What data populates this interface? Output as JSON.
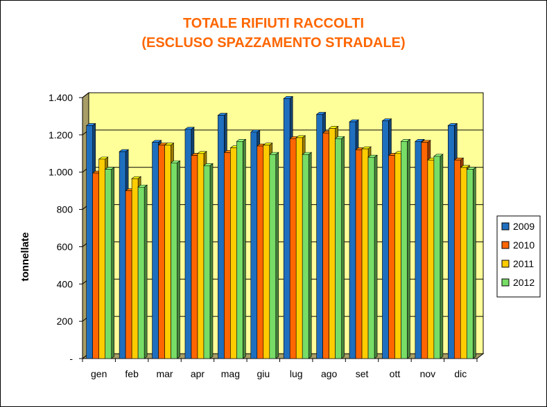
{
  "chart_data": {
    "type": "bar",
    "title": "TOTALE RIFIUTI RACCOLTI",
    "subtitle": "(ESCLUSO SPAZZAMENTO STRADALE)",
    "ylabel": "tonnellate",
    "xlabel": "",
    "ylim": [
      0,
      1400
    ],
    "yticks": [
      "-",
      "200",
      "400",
      "600",
      "800",
      "1.000",
      "1.200",
      "1.400"
    ],
    "categories": [
      "gen",
      "feb",
      "mar",
      "apr",
      "mag",
      "giu",
      "lug",
      "ago",
      "set",
      "ott",
      "nov",
      "dic"
    ],
    "series": [
      {
        "name": "2009",
        "color": "#1f6fbf",
        "values": [
          1250,
          1110,
          1160,
          1230,
          1305,
          1215,
          1395,
          1310,
          1270,
          1275,
          1165,
          1250
        ]
      },
      {
        "name": "2010",
        "color": "#ff6600",
        "values": [
          995,
          900,
          1145,
          1090,
          1105,
          1140,
          1180,
          1210,
          1120,
          1090,
          1160,
          1065
        ]
      },
      {
        "name": "2011",
        "color": "#ffcc00",
        "values": [
          1070,
          965,
          1145,
          1100,
          1130,
          1145,
          1185,
          1235,
          1125,
          1100,
          1065,
          1025
        ]
      },
      {
        "name": "2012",
        "color": "#77dd66",
        "values": [
          1015,
          920,
          1050,
          1035,
          1165,
          1095,
          1095,
          1180,
          1080,
          1165,
          1085,
          1015
        ]
      }
    ],
    "grid": true,
    "legend": "right"
  }
}
